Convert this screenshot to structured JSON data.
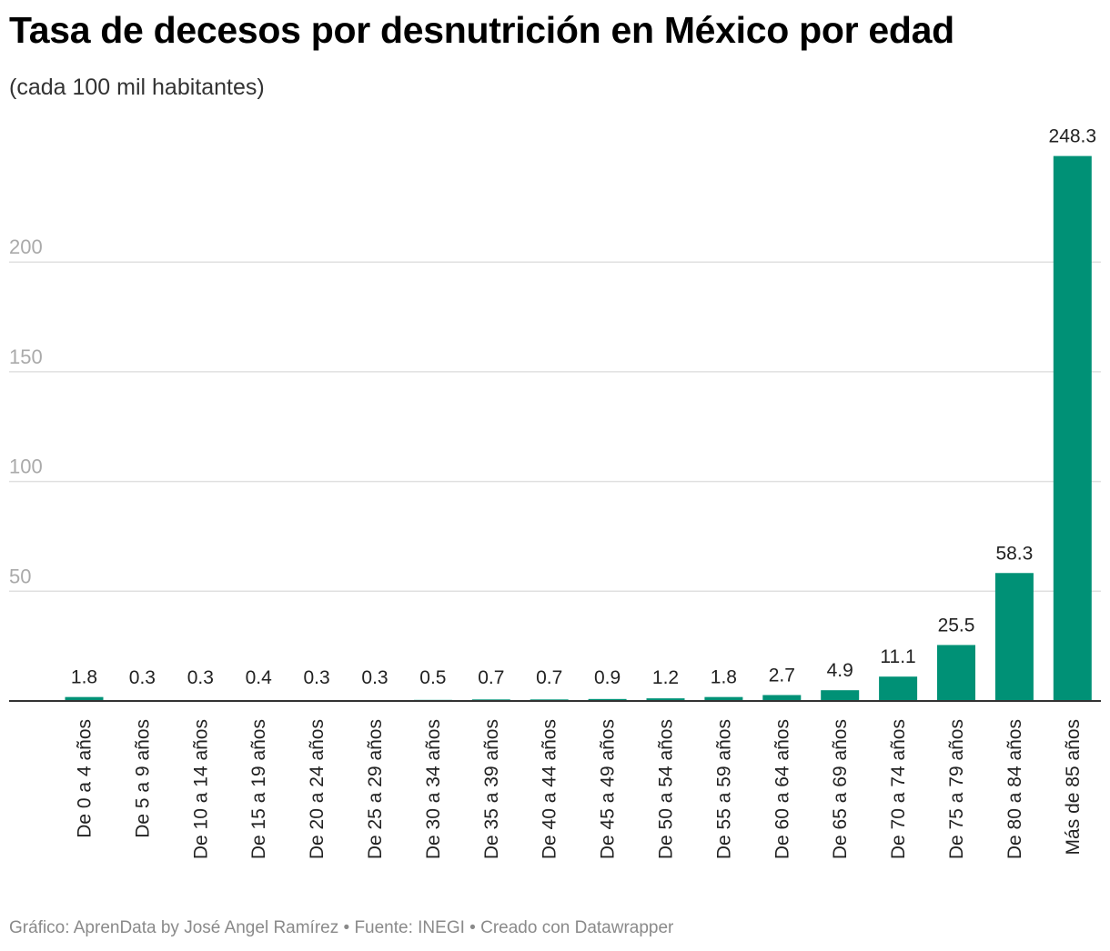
{
  "header": {
    "title": "Tasa de decesos por desnutrición en México por edad",
    "subtitle": "(cada 100 mil habitantes)"
  },
  "footer": {
    "credit": "Gráfico: AprenData by José Angel Ramírez • Fuente: INEGI • Creado con Datawrapper"
  },
  "colors": {
    "bar": "#009176",
    "grid": "#e0e0e0",
    "baseline": "#333333"
  },
  "chart_data": {
    "type": "bar",
    "title": "Tasa de decesos por desnutrición en México por edad",
    "subtitle": "(cada 100 mil habitantes)",
    "xlabel": "",
    "ylabel": "",
    "ylim": [
      0,
      250
    ],
    "yticks": [
      50,
      100,
      150,
      200
    ],
    "grid": true,
    "categories": [
      "De 0 a 4 años",
      "De 5 a 9 años",
      "De 10 a 14 años",
      "De 15 a 19 años",
      "De 20 a 24 años",
      "De 25 a 29 años",
      "De 30 a 34 años",
      "De 35 a 39 años",
      "De 40 a 44 años",
      "De 45 a 49 años",
      "De 50 a 54 años",
      "De 55 a 59 años",
      "De 60 a 64 años",
      "De 65 a 69 años",
      "De 70 a 74 años",
      "De 75 a 79 años",
      "De 80 a 84 años",
      "Más de 85 años"
    ],
    "values": [
      1.8,
      0.3,
      0.3,
      0.4,
      0.3,
      0.3,
      0.5,
      0.7,
      0.7,
      0.9,
      1.2,
      1.8,
      2.7,
      4.9,
      11.1,
      25.5,
      58.3,
      248.3
    ],
    "value_labels": [
      "1.8",
      "0.3",
      "0.3",
      "0.4",
      "0.3",
      "0.3",
      "0.5",
      "0.7",
      "0.7",
      "0.9",
      "1.2",
      "1.8",
      "2.7",
      "4.9",
      "11.1",
      "25.5",
      "58.3",
      "248.3"
    ]
  }
}
